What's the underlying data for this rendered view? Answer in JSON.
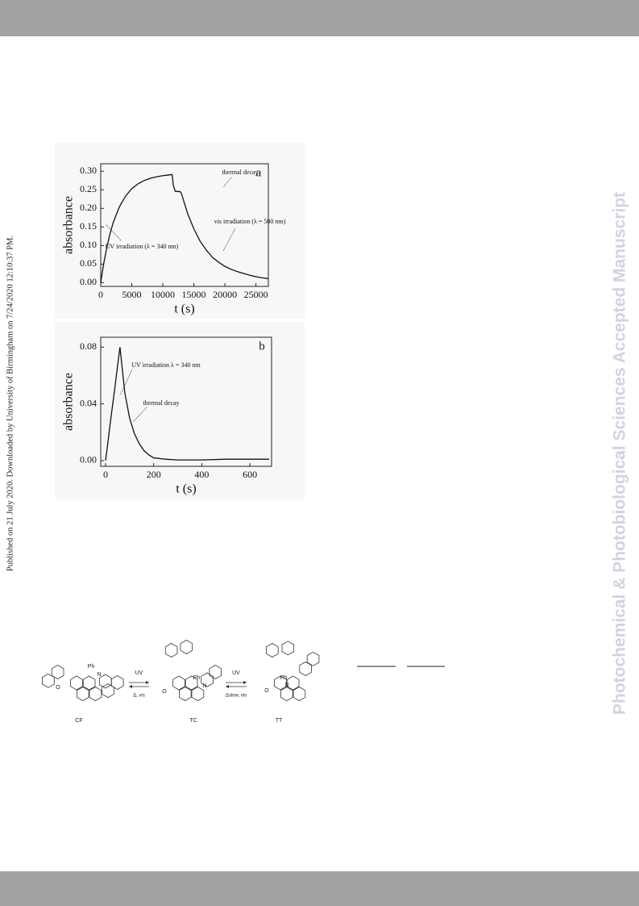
{
  "side_note": "Published on 21 July 2020. Downloaded by University of Birmingham on 7/24/2020 12:10:37 PM.",
  "watermark": "Photochemical & Photobiological Sciences Accepted Manuscript",
  "chart_data": [
    {
      "type": "line",
      "panel_label": "a",
      "xlabel": "t (s)",
      "ylabel": "absorbance",
      "x": [
        0,
        250,
        500,
        1000,
        1500,
        2000,
        3000,
        4000,
        5000,
        6000,
        7000,
        8000,
        9000,
        10000,
        11000,
        11500,
        11700,
        12000,
        12800,
        13000,
        14000,
        15000,
        16000,
        17000,
        18000,
        19000,
        20000,
        21000,
        22000,
        23000,
        24000,
        25000,
        26000,
        27000
      ],
      "series": [
        {
          "color": "#111111",
          "values": [
            0,
            0.028,
            0.053,
            0.096,
            0.132,
            0.161,
            0.204,
            0.233,
            0.253,
            0.266,
            0.275,
            0.281,
            0.285,
            0.288,
            0.29,
            0.291,
            0.262,
            0.246,
            0.245,
            0.24,
            0.186,
            0.145,
            0.112,
            0.088,
            0.068,
            0.055,
            0.044,
            0.036,
            0.03,
            0.025,
            0.02,
            0.016,
            0.013,
            0.011
          ]
        }
      ],
      "xlim": [
        0,
        27000
      ],
      "ylim": [
        -0.01,
        0.32
      ],
      "xticks": [
        0,
        5000,
        10000,
        15000,
        20000,
        25000
      ],
      "yticks": [
        {
          "value": 0,
          "label": "0.00"
        },
        {
          "value": 0.05,
          "label": "0.05"
        },
        {
          "value": 0.1,
          "label": "0.10"
        },
        {
          "value": 0.15,
          "label": "0.15"
        },
        {
          "value": 0.2,
          "label": "0.20"
        },
        {
          "value": 0.25,
          "label": "0.25"
        },
        {
          "value": 0.3,
          "label": "0.30"
        }
      ],
      "annotations": [
        "thermal decay",
        "vis irradiation (λ = 500 nm)",
        "UV irradiation (λ = 340 nm)"
      ]
    },
    {
      "type": "line",
      "panel_label": "b",
      "xlabel": "t (s)",
      "ylabel": "absorbance",
      "x": [
        0,
        10,
        20,
        30,
        40,
        50,
        60,
        80,
        100,
        120,
        140,
        160,
        180,
        200,
        250,
        300,
        400,
        500,
        600,
        680
      ],
      "series": [
        {
          "color": "#111111",
          "values": [
            0,
            0.013,
            0.027,
            0.04,
            0.053,
            0.067,
            0.08,
            0.048,
            0.03,
            0.019,
            0.012,
            0.007,
            0.004,
            0.002,
            0.001,
            0.0005,
            0.0005,
            0.001,
            0.001,
            0.001
          ]
        }
      ],
      "xlim": [
        -20,
        690
      ],
      "ylim": [
        -0.004,
        0.087
      ],
      "xticks": [
        0,
        200,
        400,
        600
      ],
      "yticks": [
        {
          "value": 0,
          "label": "0.00"
        },
        {
          "value": 0.04,
          "label": "0.04"
        },
        {
          "value": 0.08,
          "label": "0.08"
        }
      ],
      "annotations": [
        "UV irradiation λ = 340 nm",
        "thermal decay"
      ]
    }
  ],
  "scheme": {
    "compounds": [
      {
        "label": "CF",
        "atoms": [
          "O",
          "Ph",
          "N"
        ]
      },
      {
        "label": "TC",
        "atoms": [
          "O",
          "Ph",
          "N"
        ]
      },
      {
        "label": "TT",
        "atoms": [
          "O",
          "Ph",
          "N"
        ]
      }
    ],
    "arrows": [
      {
        "forward": "UV",
        "backward": "Δ, vis"
      },
      {
        "forward": "UV",
        "backward": "Δslow, vis"
      }
    ]
  }
}
